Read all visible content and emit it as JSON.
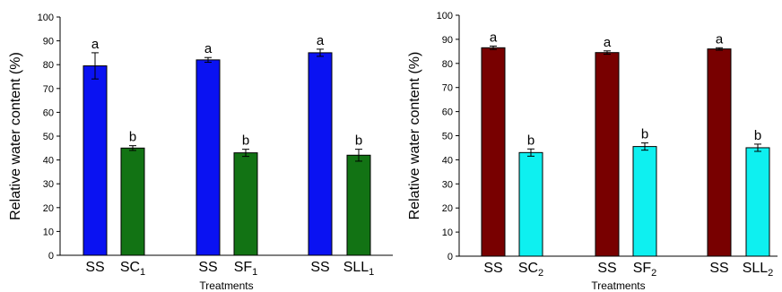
{
  "chart_data": [
    {
      "type": "bar",
      "title": "",
      "xlabel": "Treatments",
      "ylabel": "Relative water content (%)",
      "ylim": [
        0,
        100
      ],
      "yticks": [
        0,
        10,
        20,
        30,
        40,
        50,
        60,
        70,
        80,
        90,
        100
      ],
      "grid": false,
      "groups": [
        {
          "bars": [
            {
              "label": "SS",
              "label_sub": "",
              "value": 79.5,
              "error": 5.5,
              "sig": "a",
              "color": "#0a12f2"
            },
            {
              "label": "SC",
              "label_sub": "1",
              "value": 45,
              "error": 1,
              "sig": "b",
              "color": "#127314"
            }
          ]
        },
        {
          "bars": [
            {
              "label": "SS",
              "label_sub": "",
              "value": 82,
              "error": 1,
              "sig": "a",
              "color": "#0a12f2"
            },
            {
              "label": "SF",
              "label_sub": "1",
              "value": 43,
              "error": 1.5,
              "sig": "b",
              "color": "#127314"
            }
          ]
        },
        {
          "bars": [
            {
              "label": "SS",
              "label_sub": "",
              "value": 85,
              "error": 1.5,
              "sig": "a",
              "color": "#0a12f2"
            },
            {
              "label": "SLL",
              "label_sub": "1",
              "value": 42,
              "error": 2.5,
              "sig": "b",
              "color": "#127314"
            }
          ]
        }
      ]
    },
    {
      "type": "bar",
      "title": "",
      "xlabel": "Treatments",
      "ylabel": "Relative water content (%)",
      "ylim": [
        0,
        100
      ],
      "yticks": [
        0,
        10,
        20,
        30,
        40,
        50,
        60,
        70,
        80,
        90,
        100
      ],
      "grid": false,
      "groups": [
        {
          "bars": [
            {
              "label": "SS",
              "label_sub": "",
              "value": 86.5,
              "error": 0.7,
              "sig": "a",
              "color": "#780000"
            },
            {
              "label": "SC",
              "label_sub": "2",
              "value": 43,
              "error": 1.5,
              "sig": "b",
              "color": "#0ef0f0"
            }
          ]
        },
        {
          "bars": [
            {
              "label": "SS",
              "label_sub": "",
              "value": 84.5,
              "error": 0.7,
              "sig": "a",
              "color": "#780000"
            },
            {
              "label": "SF",
              "label_sub": "2",
              "value": 45.5,
              "error": 1.5,
              "sig": "b",
              "color": "#0ef0f0"
            }
          ]
        },
        {
          "bars": [
            {
              "label": "SS",
              "label_sub": "",
              "value": 86,
              "error": 0.5,
              "sig": "a",
              "color": "#780000"
            },
            {
              "label": "SLL",
              "label_sub": "2",
              "value": 45,
              "error": 1.5,
              "sig": "b",
              "color": "#0ef0f0"
            }
          ]
        }
      ]
    }
  ]
}
